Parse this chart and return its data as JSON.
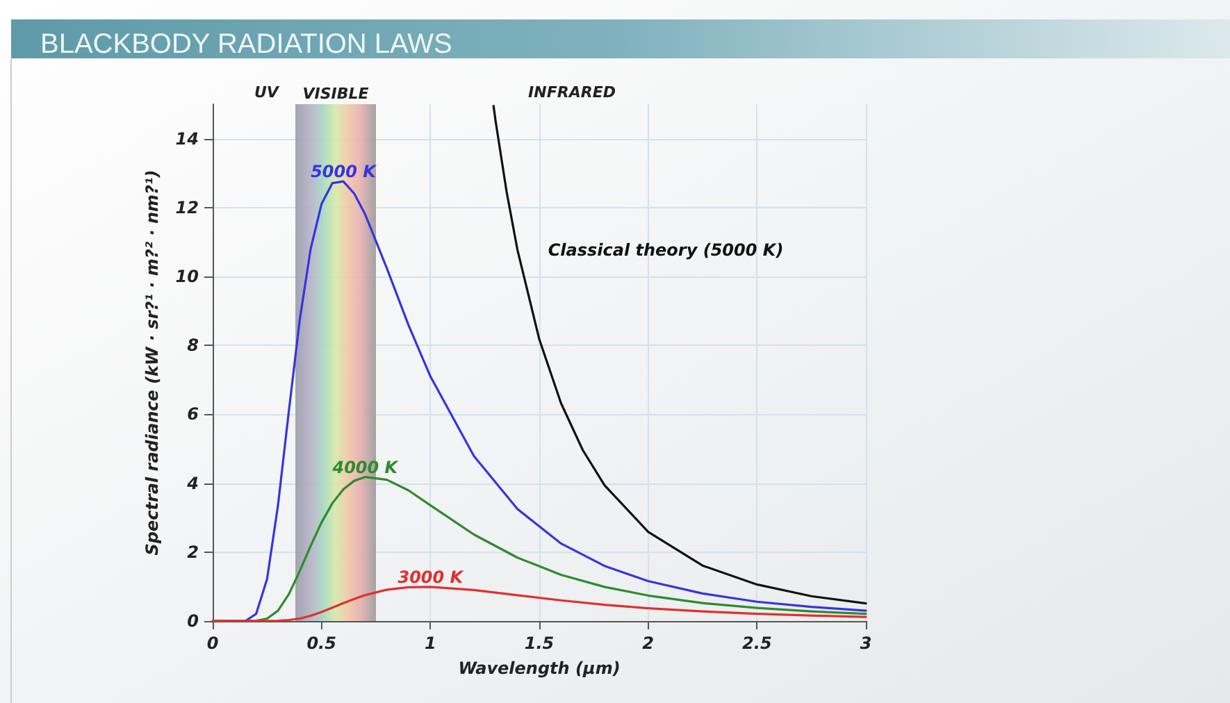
{
  "chart_data": {
    "type": "line",
    "title": "BLACKBODY RADIATION LAWS",
    "xlabel": "Wavelength (µm)",
    "ylabel": "Spectral radiance (kW · sr?¹ · m?² · nm?¹)",
    "xlim": [
      0,
      3
    ],
    "xticks": [
      0,
      0.5,
      1,
      1.5,
      2,
      2.5,
      3
    ],
    "ylim": [
      0,
      15
    ],
    "yticks": [
      0,
      2,
      4,
      6,
      8,
      10,
      12,
      14
    ],
    "grid": true,
    "legend": false,
    "marker": "none",
    "line_style": "solid",
    "bands": [
      {
        "axis": "x",
        "from": 0.38,
        "to": 0.75,
        "label": "VISIBLE"
      }
    ],
    "annotations": [
      "UV",
      "INFRARED"
    ],
    "series": [
      {
        "name": "5000 K",
        "color": "#3535e0",
        "x": [
          0,
          0.15,
          0.2,
          0.25,
          0.3,
          0.35,
          0.4,
          0.45,
          0.5,
          0.55,
          0.6,
          0.65,
          0.7,
          0.8,
          0.9,
          1.0,
          1.2,
          1.4,
          1.6,
          1.8,
          2.0,
          2.25,
          2.5,
          2.75,
          3.0
        ],
        "values": [
          0,
          0,
          0.21,
          1.22,
          3.35,
          6.09,
          8.74,
          10.8,
          12.1,
          12.71,
          12.76,
          12.41,
          11.81,
          10.24,
          8.58,
          7.1,
          4.79,
          3.25,
          2.25,
          1.6,
          1.16,
          0.8,
          0.56,
          0.41,
          0.3
        ]
      },
      {
        "name": "4000 K",
        "color": "#2e8b2e",
        "x": [
          0,
          0.2,
          0.25,
          0.3,
          0.35,
          0.4,
          0.45,
          0.5,
          0.55,
          0.6,
          0.65,
          0.7,
          0.8,
          0.9,
          1.0,
          1.2,
          1.4,
          1.6,
          1.8,
          2.0,
          2.25,
          2.5,
          2.75,
          3.0
        ],
        "values": [
          0,
          0.01,
          0.07,
          0.3,
          0.78,
          1.45,
          2.18,
          2.86,
          3.42,
          3.82,
          4.07,
          4.18,
          4.1,
          3.79,
          3.36,
          2.51,
          1.84,
          1.34,
          0.99,
          0.74,
          0.52,
          0.38,
          0.28,
          0.21
        ]
      },
      {
        "name": "3000 K",
        "color": "#e03030",
        "x": [
          0,
          0.3,
          0.35,
          0.4,
          0.45,
          0.5,
          0.55,
          0.6,
          0.65,
          0.7,
          0.8,
          0.9,
          1.0,
          1.2,
          1.4,
          1.6,
          1.8,
          2.0,
          2.25,
          2.5,
          2.75,
          3.0
        ],
        "values": [
          0,
          0.01,
          0.03,
          0.07,
          0.15,
          0.26,
          0.39,
          0.52,
          0.64,
          0.75,
          0.91,
          0.98,
          0.99,
          0.9,
          0.75,
          0.6,
          0.47,
          0.37,
          0.28,
          0.21,
          0.16,
          0.12
        ]
      },
      {
        "name": "Classical theory (5000 K)",
        "color": "#111111",
        "x": [
          1.29,
          1.3,
          1.35,
          1.4,
          1.5,
          1.6,
          1.7,
          1.8,
          2.0,
          2.25,
          2.5,
          2.75,
          3.0
        ],
        "values": [
          14.95,
          14.49,
          12.46,
          10.77,
          8.18,
          6.32,
          4.96,
          3.94,
          2.59,
          1.61,
          1.06,
          0.72,
          0.51
        ]
      }
    ]
  }
}
